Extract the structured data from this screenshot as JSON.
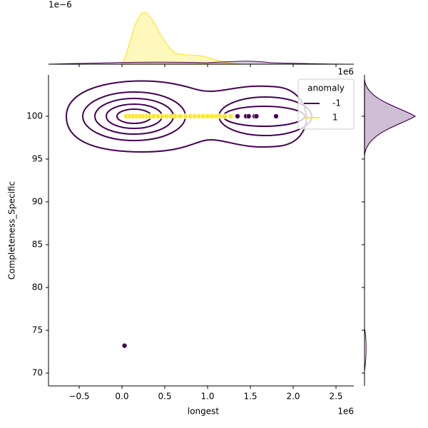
{
  "chart_data": {
    "type": "scatter",
    "xlabel": "longest",
    "ylabel": "Completeness_Specific",
    "x_offset_label": "1e6",
    "marginal_offset_label": "1e−6",
    "xlim": [
      -0.858,
      2.708
    ],
    "ylim": [
      68.5,
      104.83
    ],
    "xticks": [
      {
        "value": -0.5,
        "label": "−0.5"
      },
      {
        "value": 0,
        "label": "0.0"
      },
      0.5,
      {
        "value": 1,
        "label": "1.0"
      },
      1.5,
      {
        "value": 2,
        "label": "2.0"
      },
      2.5
    ],
    "yticks": [
      70,
      75,
      80,
      85,
      90,
      95,
      100
    ],
    "legend_title": "anomaly",
    "legend": "upper right",
    "series": [
      {
        "name": "-1",
        "color": "#440154",
        "x": [
          0.03,
          1.35,
          1.45,
          1.48,
          1.55,
          1.57,
          1.8
        ],
        "values": [
          73.2,
          100,
          100,
          100,
          100,
          100,
          100
        ]
      },
      {
        "name": "1",
        "color": "#fde725",
        "x": [
          0.05,
          0.09,
          0.13,
          0.17,
          0.21,
          0.25,
          0.29,
          0.33,
          0.37,
          0.42,
          0.47,
          0.52,
          0.57,
          0.62,
          0.68,
          0.74,
          0.8,
          0.85,
          0.9,
          0.95,
          1.0,
          1.05,
          1.1,
          1.15,
          1.2,
          1.27
        ],
        "values": [
          100,
          100,
          100,
          100,
          100,
          100,
          100,
          100,
          100,
          100,
          100,
          100,
          100,
          100,
          100,
          100,
          100,
          100,
          100,
          100,
          100,
          100,
          100,
          100,
          100,
          100
        ]
      }
    ]
  }
}
